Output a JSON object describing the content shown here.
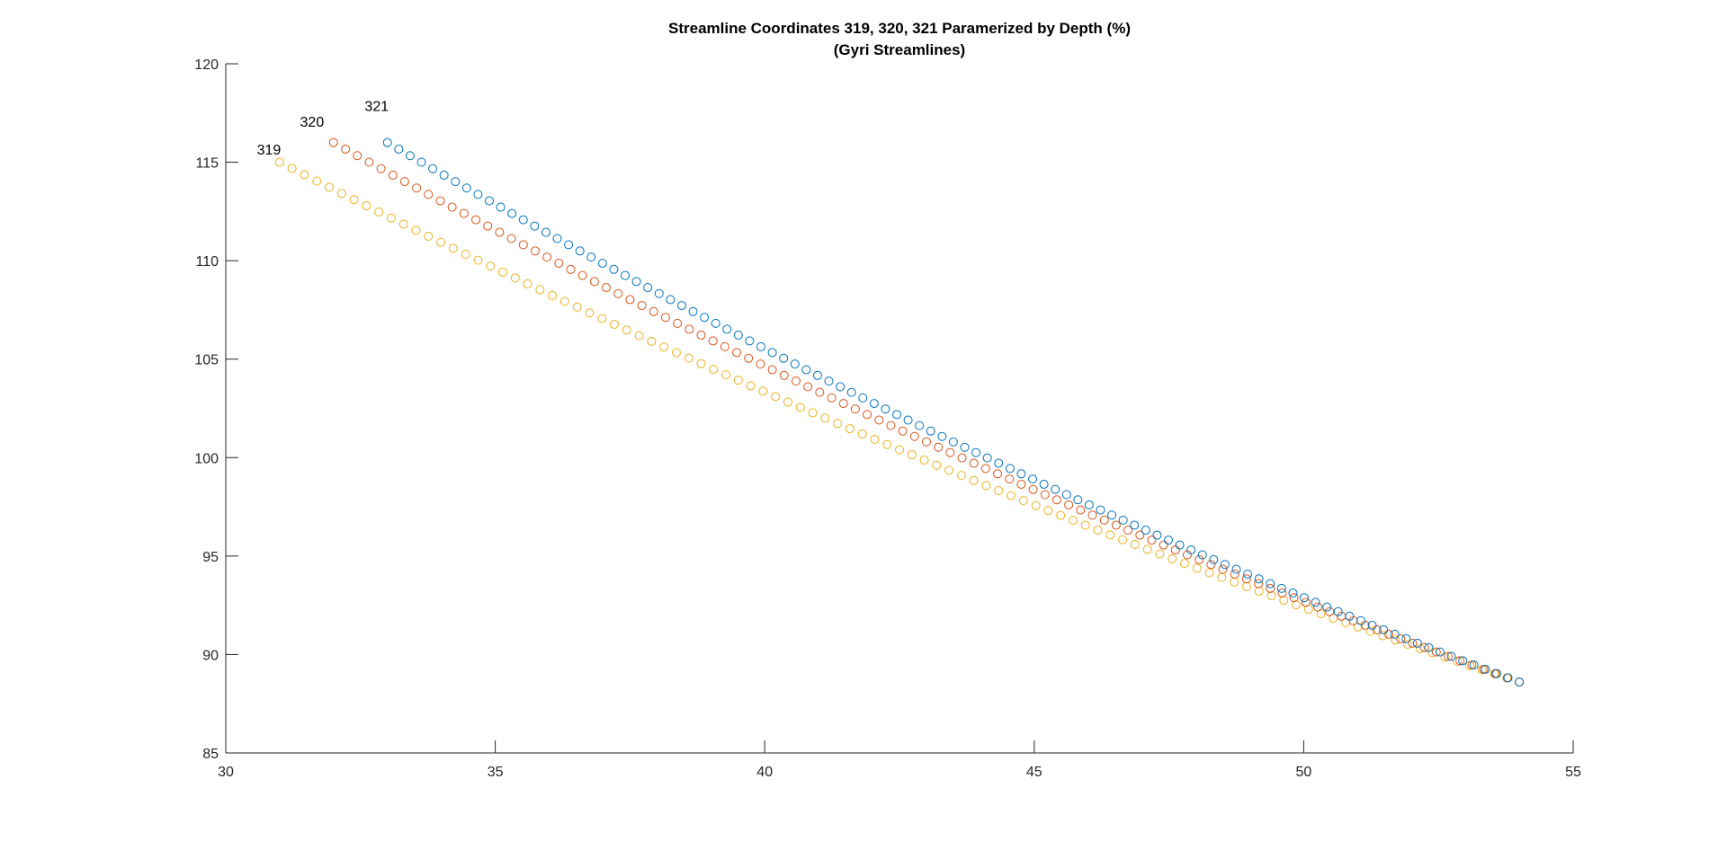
{
  "chart_data": {
    "type": "scatter",
    "title": "Streamline Coordinates 319, 320, 321 Paramerized by Depth (%)",
    "subtitle": "(Gyri Streamlines)",
    "xlabel": "",
    "ylabel": "",
    "xlim": [
      30,
      55
    ],
    "ylim": [
      85,
      120
    ],
    "xticks": [
      30,
      35,
      40,
      45,
      50,
      55
    ],
    "yticks": [
      85,
      90,
      95,
      100,
      105,
      110,
      115,
      120
    ],
    "grid": false,
    "legend": "none",
    "marker": "open-circle",
    "series": [
      {
        "name": "319",
        "color": "#EDB120",
        "label_at": [
          30.8,
          115.4
        ],
        "points": 101,
        "x_start": 31.0,
        "x_end": 54.0,
        "y_start": 115.0,
        "y_end": 88.6,
        "curve_midpoint": [
          42.5,
          100.4
        ]
      },
      {
        "name": "320",
        "color": "#D95319",
        "label_at": [
          31.6,
          116.8
        ],
        "points": 101,
        "x_start": 32.0,
        "x_end": 54.0,
        "y_start": 116.0,
        "y_end": 88.6,
        "curve_midpoint": [
          43.0,
          100.8
        ]
      },
      {
        "name": "321",
        "color": "#0072BD",
        "label_at": [
          32.8,
          117.6
        ],
        "points": 101,
        "x_start": 33.0,
        "x_end": 54.0,
        "y_start": 116.0,
        "y_end": 88.6,
        "curve_midpoint": [
          43.5,
          100.8
        ]
      }
    ]
  }
}
